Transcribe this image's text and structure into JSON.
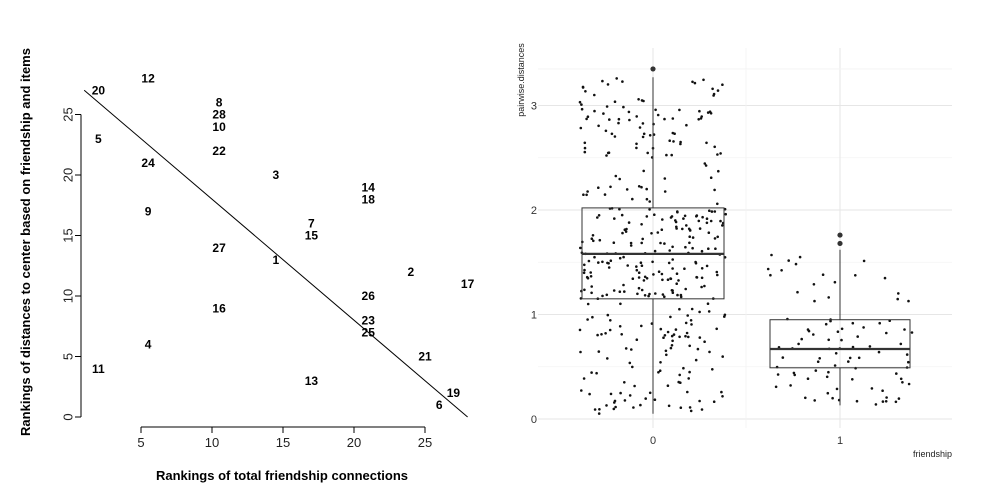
{
  "chart_data": [
    {
      "type": "scatter",
      "title": "",
      "xlabel": "Rankings of total friendship connections",
      "ylabel": "Rankings of distances to center based on friendship and items",
      "xlim": [
        1,
        28
      ],
      "ylim": [
        0,
        27
      ],
      "xticks": [
        5,
        10,
        15,
        20,
        25
      ],
      "yticks": [
        0,
        5,
        10,
        15,
        20,
        25
      ],
      "points": [
        {
          "label": "20",
          "x": 2,
          "y": 27
        },
        {
          "label": "12",
          "x": 5.5,
          "y": 28
        },
        {
          "label": "5",
          "x": 2,
          "y": 23
        },
        {
          "label": "8",
          "x": 10.5,
          "y": 26
        },
        {
          "label": "28",
          "x": 10.5,
          "y": 25
        },
        {
          "label": "10",
          "x": 10.5,
          "y": 24
        },
        {
          "label": "22",
          "x": 10.5,
          "y": 22
        },
        {
          "label": "24",
          "x": 5.5,
          "y": 21
        },
        {
          "label": "3",
          "x": 14.5,
          "y": 20
        },
        {
          "label": "14",
          "x": 21,
          "y": 19
        },
        {
          "label": "18",
          "x": 21,
          "y": 18
        },
        {
          "label": "9",
          "x": 5.5,
          "y": 17
        },
        {
          "label": "7",
          "x": 17,
          "y": 16
        },
        {
          "label": "15",
          "x": 17,
          "y": 15
        },
        {
          "label": "27",
          "x": 10.5,
          "y": 14
        },
        {
          "label": "1",
          "x": 14.5,
          "y": 13
        },
        {
          "label": "2",
          "x": 24,
          "y": 12
        },
        {
          "label": "17",
          "x": 28,
          "y": 11
        },
        {
          "label": "26",
          "x": 21,
          "y": 10
        },
        {
          "label": "16",
          "x": 10.5,
          "y": 9
        },
        {
          "label": "23",
          "x": 21,
          "y": 8
        },
        {
          "label": "25",
          "x": 21,
          "y": 7
        },
        {
          "label": "4",
          "x": 5.5,
          "y": 6
        },
        {
          "label": "21",
          "x": 25,
          "y": 5
        },
        {
          "label": "11",
          "x": 2,
          "y": 4
        },
        {
          "label": "13",
          "x": 17,
          "y": 3
        },
        {
          "label": "19",
          "x": 27,
          "y": 2
        },
        {
          "label": "6",
          "x": 26,
          "y": 1
        }
      ],
      "reference_line": [
        {
          "x": 1,
          "y": 27
        },
        {
          "x": 28,
          "y": 0
        }
      ]
    },
    {
      "type": "box",
      "title": "",
      "xlabel": "friendship",
      "ylabel": "pairwise.distances",
      "categories": [
        "0",
        "1"
      ],
      "yticks": [
        0,
        1,
        2,
        3
      ],
      "ylim": [
        -0.05,
        3.5
      ],
      "grid": true,
      "boxes": [
        {
          "category": "0",
          "min": 0.05,
          "q1": 1.15,
          "median": 1.58,
          "q3": 2.02,
          "max": 3.27,
          "outliers": [
            3.35
          ],
          "jitter_points": 380
        },
        {
          "category": "1",
          "min": 0.13,
          "q1": 0.49,
          "median": 0.67,
          "q3": 0.95,
          "max": 1.62,
          "outliers": [
            1.68,
            1.76
          ],
          "jitter_points": 90
        }
      ]
    }
  ]
}
